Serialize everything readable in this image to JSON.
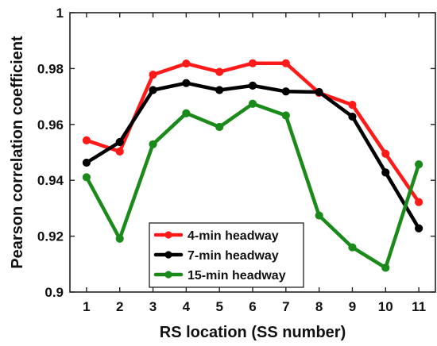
{
  "chart_data": {
    "type": "line",
    "xlabel": "RS location (SS number)",
    "ylabel": "Pearson correlation coefficient",
    "x": [
      1,
      2,
      3,
      4,
      5,
      6,
      7,
      8,
      9,
      10,
      11
    ],
    "xlim": [
      0.5,
      11.5
    ],
    "ylim": [
      0.9,
      1.0
    ],
    "yticks": [
      0.9,
      0.92,
      0.94,
      0.96,
      0.98,
      1.0
    ],
    "ytick_labels": [
      "0.9",
      "0.92",
      "0.94",
      "0.96",
      "0.98",
      "1"
    ],
    "xtick_labels": [
      "1",
      "2",
      "3",
      "4",
      "5",
      "6",
      "7",
      "8",
      "9",
      "10",
      "11"
    ],
    "grid": false,
    "legend_position": "bottom-center",
    "series": [
      {
        "name": "4-min headway",
        "color": "#ff1a1a",
        "values": [
          0.9543,
          0.9503,
          0.9778,
          0.9818,
          0.9788,
          0.9819,
          0.9819,
          0.9713,
          0.967,
          0.9495,
          0.9322
        ]
      },
      {
        "name": "7-min headway",
        "color": "#000000",
        "values": [
          0.9463,
          0.9537,
          0.9723,
          0.9748,
          0.9723,
          0.9739,
          0.9718,
          0.9716,
          0.9628,
          0.9428,
          0.9228
        ]
      },
      {
        "name": "15-min headway",
        "color": "#1a8a1a",
        "values": [
          0.9411,
          0.9191,
          0.9529,
          0.964,
          0.9591,
          0.9674,
          0.9632,
          0.9274,
          0.916,
          0.9087,
          0.9457
        ]
      }
    ]
  }
}
